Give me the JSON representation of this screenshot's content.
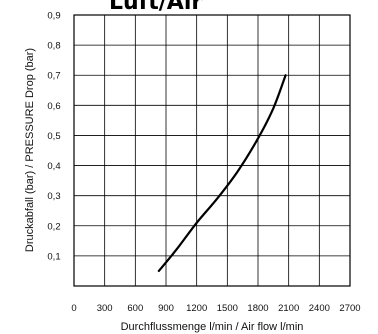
{
  "chart_data": {
    "type": "line",
    "title": "Luft/Air",
    "xlabel": "Durchflussmenge l/min / Air flow l/min",
    "ylabel": "Druckabfall (bar) / PRESSURE Drop (bar)",
    "xlim": [
      0,
      2700
    ],
    "ylim": [
      0,
      0.9
    ],
    "x_ticks": [
      "0",
      "300",
      "600",
      "900",
      "1200",
      "1500",
      "1800",
      "2100",
      "2400",
      "2700"
    ],
    "y_ticks": [
      "0,1",
      "0,2",
      "0,3",
      "0,4",
      "0,5",
      "0,6",
      "0,7",
      "0,8",
      "0,9"
    ],
    "grid": true,
    "series": [
      {
        "x": [
          830,
          1000,
          1200,
          1400,
          1600,
          1800,
          1950,
          2070
        ],
        "y": [
          0.05,
          0.12,
          0.21,
          0.29,
          0.38,
          0.49,
          0.59,
          0.7
        ]
      }
    ]
  }
}
